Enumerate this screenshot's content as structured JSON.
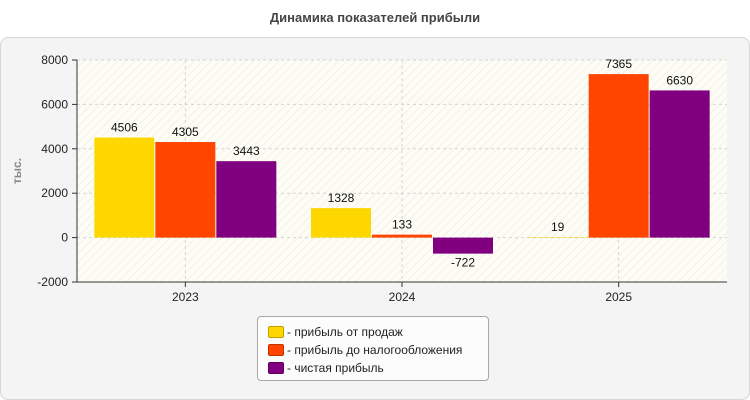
{
  "chart_data": {
    "type": "bar",
    "title": "Динамика показателей прибыли",
    "ylabel": "тыс.",
    "xlabel": "",
    "categories": [
      "2023",
      "2024",
      "2025"
    ],
    "ylim": [
      -2000,
      8000
    ],
    "yticks": [
      -2000,
      0,
      2000,
      4000,
      6000,
      8000
    ],
    "grid": true,
    "legend_position": "bottom",
    "series": [
      {
        "name": "- прибыль от продаж",
        "color": "#FFD700",
        "values": [
          4506,
          1328,
          19
        ]
      },
      {
        "name": "- прибыль до налогообложения",
        "color": "#FF4500",
        "values": [
          4305,
          133,
          7365
        ]
      },
      {
        "name": "- чистая прибыль",
        "color": "#800080",
        "values": [
          3443,
          -722,
          6630
        ]
      }
    ]
  }
}
